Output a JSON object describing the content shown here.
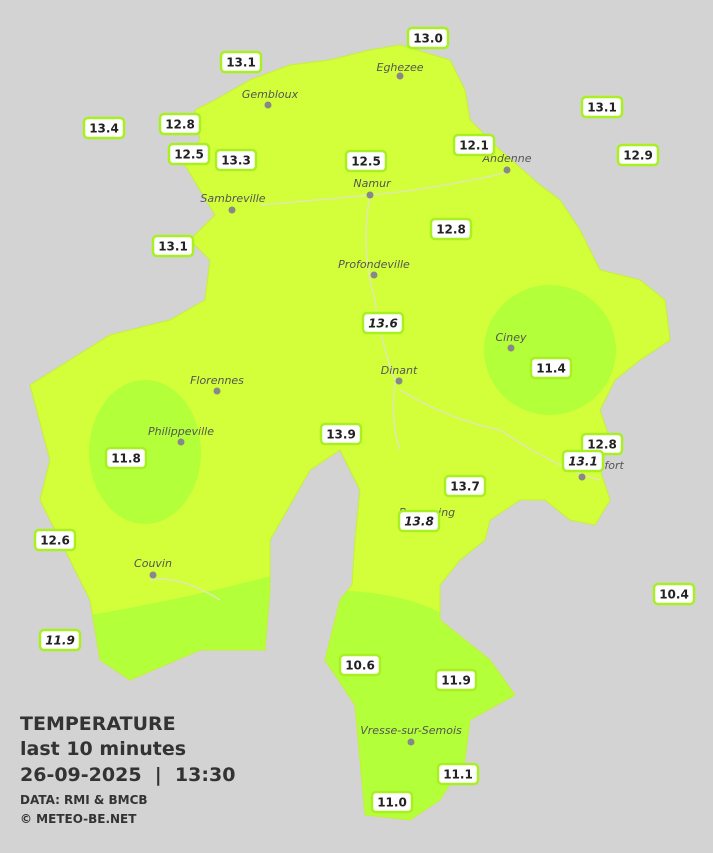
{
  "legend": {
    "title": "TEMPERATURE",
    "subtitle": "last 10 minutes",
    "datetime": "26-09-2025  |  13:30",
    "source": "DATA: RMI & BMCB",
    "credit": "© METEO-BE.NET"
  },
  "cities": [
    "Eghezee",
    "Gembloux",
    "Andenne",
    "Namur",
    "Sambreville",
    "Profondeville",
    "Ciney",
    "Dinant",
    "Florennes",
    "Philippeville",
    "Rochefort",
    "Beauraing",
    "Couvin",
    "Vresse-sur-Semois"
  ],
  "stations": [
    {
      "text": "13.0",
      "italic": false
    },
    {
      "text": "13.1",
      "italic": false
    },
    {
      "text": "13.4",
      "italic": false
    },
    {
      "text": "12.8",
      "italic": false
    },
    {
      "text": "12.5",
      "italic": false
    },
    {
      "text": "13.3",
      "italic": false
    },
    {
      "text": "12.5",
      "italic": false
    },
    {
      "text": "12.1",
      "italic": false
    },
    {
      "text": "13.1",
      "italic": false
    },
    {
      "text": "12.9",
      "italic": false
    },
    {
      "text": "13.1",
      "italic": false
    },
    {
      "text": "12.8",
      "italic": false
    },
    {
      "text": "13.6",
      "italic": true
    },
    {
      "text": "11.4",
      "italic": false
    },
    {
      "text": "11.8",
      "italic": false
    },
    {
      "text": "13.9",
      "italic": false
    },
    {
      "text": "12.8",
      "italic": false
    },
    {
      "text": "13.1",
      "italic": true
    },
    {
      "text": "13.7",
      "italic": false
    },
    {
      "text": "13.8",
      "italic": true
    },
    {
      "text": "12.6",
      "italic": false
    },
    {
      "text": "10.4",
      "italic": false
    },
    {
      "text": "11.9",
      "italic": true
    },
    {
      "text": "10.6",
      "italic": false
    },
    {
      "text": "11.9",
      "italic": false
    },
    {
      "text": "11.1",
      "italic": false
    },
    {
      "text": "11.0",
      "italic": false
    }
  ]
}
